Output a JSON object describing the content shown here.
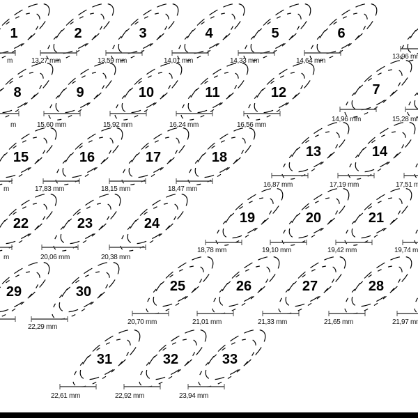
{
  "colors": {
    "ink": "#000000",
    "scale_bar": "#444444",
    "background": "#ffffff"
  },
  "items": [
    {
      "number": "1",
      "measure": "m"
    },
    {
      "number": "2",
      "measure": "13,27 mm"
    },
    {
      "number": "3",
      "measure": "13,59 mm"
    },
    {
      "number": "4",
      "measure": "14,01 mm"
    },
    {
      "number": "5",
      "measure": "14,33 mm"
    },
    {
      "number": "6",
      "measure": "14,64 mm"
    },
    {
      "number": "",
      "measure": "13,96 mm"
    },
    {
      "number": "8",
      "measure": "m"
    },
    {
      "number": "9",
      "measure": "15,60 mm"
    },
    {
      "number": "10",
      "measure": "15,92 mm"
    },
    {
      "number": "11",
      "measure": "16,24 mm"
    },
    {
      "number": "12",
      "measure": "16,56 mm"
    },
    {
      "number": "7",
      "measure": "14,96 mm"
    },
    {
      "number": "",
      "measure": "15,28 mm"
    },
    {
      "number": "15",
      "measure": "m"
    },
    {
      "number": "16",
      "measure": "17,83 mm"
    },
    {
      "number": "17",
      "measure": "18,15 mm"
    },
    {
      "number": "18",
      "measure": "18,47 mm"
    },
    {
      "number": "13",
      "measure": "16,87 mm"
    },
    {
      "number": "14",
      "measure": "17,19 mm"
    },
    {
      "number": "",
      "measure": "17,51 mm"
    },
    {
      "number": "22",
      "measure": "m"
    },
    {
      "number": "23",
      "measure": "20,06 mm"
    },
    {
      "number": "24",
      "measure": "20,38 mm"
    },
    {
      "number": "19",
      "measure": "18,78 mm"
    },
    {
      "number": "20",
      "measure": "19,10 mm"
    },
    {
      "number": "21",
      "measure": "19,42 mm"
    },
    {
      "number": "",
      "measure": "19,74 mm"
    },
    {
      "number": "29",
      "measure": ""
    },
    {
      "number": "30",
      "measure": "22,29 mm"
    },
    {
      "number": "25",
      "measure": "20,70 mm"
    },
    {
      "number": "26",
      "measure": "21,01 mm"
    },
    {
      "number": "27",
      "measure": "21,33 mm"
    },
    {
      "number": "28",
      "measure": "21,65 mm"
    },
    {
      "number": "",
      "measure": "21,97 mm"
    },
    {
      "number": "31",
      "measure": "22,61 mm"
    },
    {
      "number": "32",
      "measure": "22,92 mm"
    },
    {
      "number": "33",
      "measure": "23,94 mm"
    }
  ]
}
